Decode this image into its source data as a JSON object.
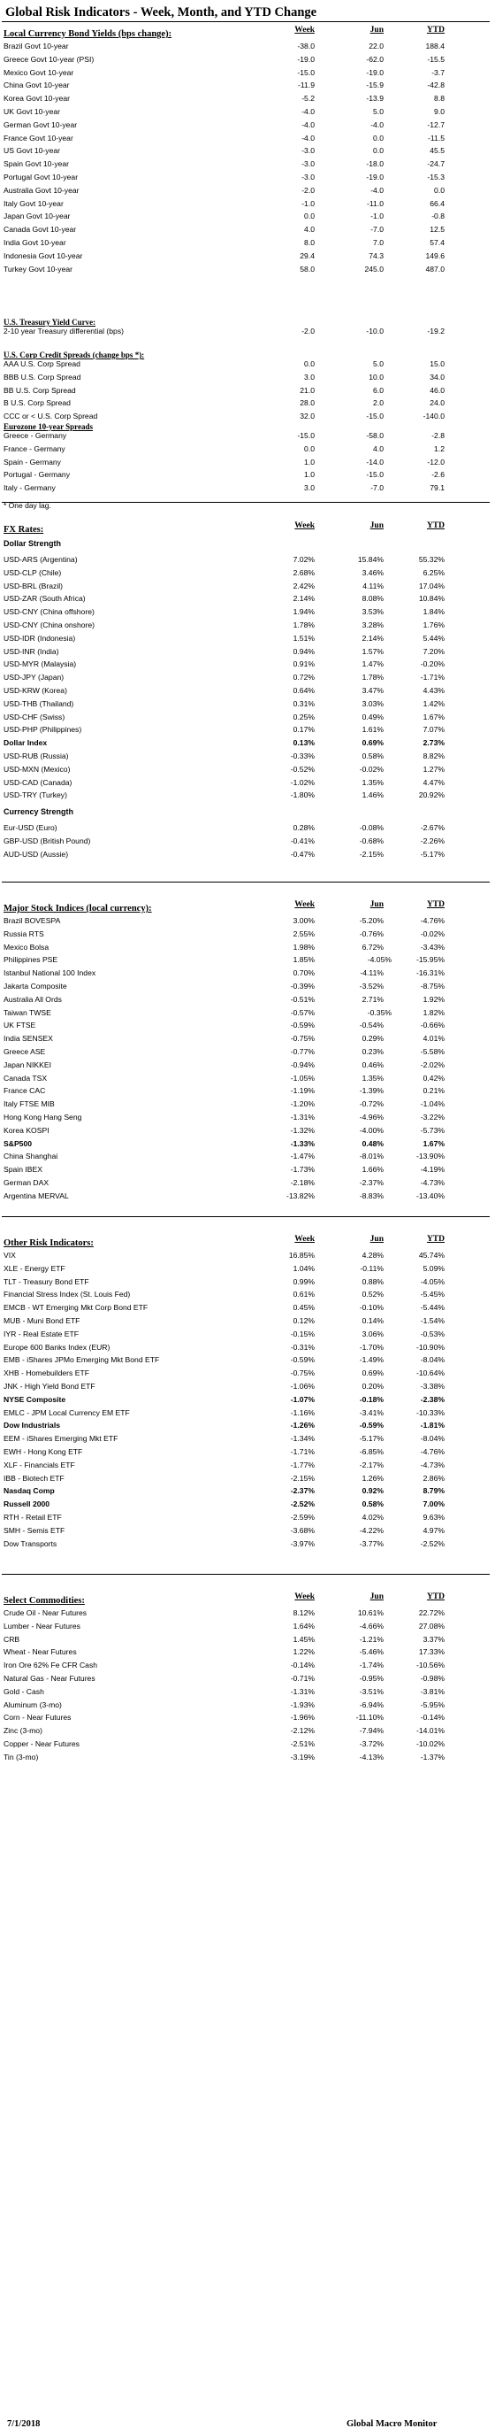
{
  "title": "Global Risk Indicators - Week, Month, and YTD Change",
  "columns": {
    "c1": "Week",
    "c2": "Jun",
    "c3": "YTD"
  },
  "footnote": "* One day lag.",
  "footer": {
    "date": "7/1/2018",
    "brand": "Global Macro Monitor"
  },
  "sections": [
    {
      "heading": "Local Currency Bond Yields (bps change):",
      "show_cols": true,
      "groups": [
        {
          "rows": [
            [
              "Brazil Govt 10-year",
              "-38.0",
              "22.0",
              "188.4"
            ],
            [
              "Greece Govt 10-year (PSI)",
              "-19.0",
              "-62.0",
              "-15.5"
            ],
            [
              "Mexico Govt 10-year",
              "-15.0",
              "-19.0",
              "-3.7"
            ],
            [
              "China Govt 10-year",
              "-11.9",
              "-15.9",
              "-42.8"
            ],
            [
              "Korea Govt 10-year",
              "-5.2",
              "-13.9",
              "8.8"
            ],
            [
              "UK Govt 10-year",
              "-4.0",
              "5.0",
              "9.0"
            ],
            [
              "German Govt 10-year",
              "-4.0",
              "-4.0",
              "-12.7"
            ],
            [
              "France Govt 10-year",
              "-4.0",
              "0.0",
              "-11.5"
            ],
            [
              "US Govt 10-year",
              "-3.0",
              "0.0",
              "45.5"
            ],
            [
              "Spain Govt 10-year",
              "-3.0",
              "-18.0",
              "-24.7"
            ],
            [
              "Portugal Govt 10-year",
              "-3.0",
              "-19.0",
              "-15.3"
            ],
            [
              "Australia Govt 10-year",
              "-2.0",
              "-4.0",
              "0.0"
            ],
            [
              "Italy Govt 10-year",
              "-1.0",
              "-11.0",
              "66.4"
            ],
            [
              "Japan Govt 10-year",
              "0.0",
              "-1.0",
              "-0.8"
            ],
            [
              "Canada Govt 10-year",
              "4.0",
              "-7.0",
              "12.5"
            ],
            [
              "India Govt 10-year",
              "8.0",
              "7.0",
              "57.4"
            ],
            [
              "Indonesia Govt 10-year",
              "29.4",
              "74.3",
              "149.6"
            ],
            [
              "Turkey Govt 10-year",
              "58.0",
              "245.0",
              "487.0"
            ]
          ]
        }
      ]
    },
    {
      "heading": "U.S. Treasury Yield Curve:",
      "small": true,
      "groups": [
        {
          "rows": [
            [
              "2-10 year Treasury differential (bps)",
              "-2.0",
              "-10.0",
              "-19.2"
            ]
          ]
        }
      ]
    },
    {
      "heading": "U.S. Corp Credit Spreads (change bps *):",
      "small": true,
      "groups": [
        {
          "rows": [
            [
              "AAA U.S. Corp Spread",
              "0.0",
              "5.0",
              "15.0"
            ],
            [
              "BBB U.S. Corp Spread",
              "3.0",
              "10.0",
              "34.0"
            ],
            [
              "BB U.S. Corp Spread",
              "21.0",
              "6.0",
              "46.0"
            ],
            [
              "B U.S. Corp Spread",
              "28.0",
              "2.0",
              "24.0"
            ],
            [
              "CCC or < U.S. Corp Spread",
              "32.0",
              "-15.0",
              "-140.0"
            ]
          ]
        }
      ]
    },
    {
      "heading": "Eurozone 10-year Spreads",
      "small": true,
      "groups": [
        {
          "rows": [
            [
              "Greece - Germany",
              "-15.0",
              "-58.0",
              "-2.8"
            ],
            [
              "France - Germany",
              "0.0",
              "4.0",
              "1.2"
            ],
            [
              "Spain - Germany",
              "1.0",
              "-14.0",
              "-12.0"
            ],
            [
              "Portugal - Germany",
              "1.0",
              "-15.0",
              "-2.6"
            ],
            [
              "Italy - Germany",
              "3.0",
              "-7.0",
              "79.1"
            ]
          ]
        }
      ]
    },
    {
      "heading": "FX Rates:",
      "show_cols": true,
      "groups": [
        {
          "sub": "Dollar Strength",
          "rows": [
            [
              "USD-ARS (Argentina)",
              "7.02%",
              "15.84%",
              "55.32%"
            ],
            [
              "USD-CLP (Chile)",
              "2.68%",
              "3.46%",
              "6.25%"
            ],
            [
              "USD-BRL (Brazil)",
              "2.42%",
              "4.11%",
              "17.04%"
            ],
            [
              "USD-ZAR (South Africa)",
              "2.14%",
              "8.08%",
              "10.84%"
            ],
            [
              "USD-CNY (China offshore)",
              "1.94%",
              "3.53%",
              "1.84%"
            ],
            [
              "USD-CNY (China onshore)",
              "1.78%",
              "3.28%",
              "1.76%"
            ],
            [
              "USD-IDR (Indonesia)",
              "1.51%",
              "2.14%",
              "5.44%"
            ],
            [
              "USD-INR (India)",
              "0.94%",
              "1.57%",
              "7.20%"
            ],
            [
              "USD-MYR (Malaysia)",
              "0.91%",
              "1.47%",
              "-0.20%"
            ],
            [
              "USD-JPY (Japan)",
              "0.72%",
              "1.78%",
              "-1.71%"
            ],
            [
              "USD-KRW (Korea)",
              "0.64%",
              "3.47%",
              "4.43%"
            ],
            [
              "USD-THB  (Thailand)",
              "0.31%",
              "3.03%",
              "1.42%"
            ],
            [
              "USD-CHF (Swiss)",
              "0.25%",
              "0.49%",
              "1.67%"
            ],
            [
              "USD-PHP (Philippines)",
              "0.17%",
              "1.61%",
              "7.07%"
            ],
            [
              "Dollar Index",
              "0.13%",
              "0.69%",
              "2.73%",
              "b"
            ],
            [
              "USD-RUB (Russia)",
              "-0.33%",
              "0.58%",
              "8.82%"
            ],
            [
              "USD-MXN  (Mexico)",
              "-0.52%",
              "-0.02%",
              "1.27%"
            ],
            [
              "USD-CAD (Canada)",
              "-1.02%",
              "1.35%",
              "4.47%"
            ],
            [
              "USD-TRY (Turkey)",
              "-1.80%",
              "1.46%",
              "20.92%"
            ]
          ]
        },
        {
          "sub": "Currency Strength",
          "rows": [
            [
              "Eur-USD (Euro)",
              "0.28%",
              "-0.08%",
              "-2.67%"
            ],
            [
              "GBP-USD (British Pound)",
              "-0.41%",
              "-0.68%",
              "-2.26%"
            ],
            [
              "AUD-USD (Aussie)",
              "-0.47%",
              "-2.15%",
              "-5.17%"
            ]
          ]
        }
      ]
    },
    {
      "heading": "Major Stock Indices (local currency):",
      "show_cols": true,
      "groups": [
        {
          "rows": [
            [
              "Brazil BOVESPA",
              "3.00%",
              "-5.20%",
              "-4.76%"
            ],
            [
              "Russia RTS",
              "2.55%",
              "-0.76%",
              "-0.02%"
            ],
            [
              "Mexico Bolsa",
              "1.98%",
              "6.72%",
              "-3.43%"
            ],
            [
              "Philippines PSE",
              "1.85%",
              "-4.05%",
              "-15.95%",
              "",
              "v2shift"
            ],
            [
              "Istanbul National 100 Index",
              "0.70%",
              "-4.11%",
              "-16.31%"
            ],
            [
              "Jakarta Composite",
              "-0.39%",
              "-3.52%",
              "-8.75%"
            ],
            [
              "Australia All Ords",
              "-0.51%",
              "2.71%",
              "1.92%"
            ],
            [
              "Taiwan  TWSE",
              "-0.57%",
              "-0.35%",
              "1.82%",
              "",
              "v2shift"
            ],
            [
              "UK FTSE",
              "-0.59%",
              "-0.54%",
              "-0.66%"
            ],
            [
              "India SENSEX",
              "-0.75%",
              "0.29%",
              "4.01%"
            ],
            [
              "Greece ASE",
              "-0.77%",
              "0.23%",
              "-5.58%"
            ],
            [
              "Japan NIKKEI",
              "-0.94%",
              "0.46%",
              "-2.02%"
            ],
            [
              "Canada TSX",
              "-1.05%",
              "1.35%",
              "0.42%"
            ],
            [
              "France CAC",
              "-1.19%",
              "-1.39%",
              "0.21%"
            ],
            [
              "Italy FTSE MIB",
              "-1.20%",
              "-0.72%",
              "-1.04%"
            ],
            [
              "Hong Kong Hang Seng",
              "-1.31%",
              "-4.96%",
              "-3.22%"
            ],
            [
              "Korea KOSPI",
              "-1.32%",
              "-4.00%",
              "-5.73%"
            ],
            [
              "S&P500",
              "-1.33%",
              "0.48%",
              "1.67%",
              "b"
            ],
            [
              "China Shanghai",
              "-1.47%",
              "-8.01%",
              "-13.90%"
            ],
            [
              "Spain IBEX",
              "-1.73%",
              "1.66%",
              "-4.19%"
            ],
            [
              "German DAX",
              "-2.18%",
              "-2.37%",
              "-4.73%"
            ],
            [
              "Argentina MERVAL",
              "-13.82%",
              "-8.83%",
              "-13.40%"
            ]
          ]
        }
      ]
    },
    {
      "heading": "Other Risk Indicators:",
      "show_cols": true,
      "groups": [
        {
          "rows": [
            [
              "VIX",
              "16.85%",
              "4.28%",
              "45.74%"
            ],
            [
              "XLE - Energy ETF",
              "1.04%",
              "-0.11%",
              "5.09%"
            ],
            [
              "TLT - Treasury Bond ETF",
              "0.99%",
              "0.88%",
              "-4.05%"
            ],
            [
              "Financial Stress Index (St. Louis Fed)",
              "0.61%",
              "0.52%",
              "-5.45%"
            ],
            [
              "EMCB - WT Emerging Mkt Corp Bond ETF",
              "0.45%",
              "-0.10%",
              "-5.44%"
            ],
            [
              "MUB - Muni Bond ETF",
              "0.12%",
              "0.14%",
              "-1.54%"
            ],
            [
              "IYR - Real Estate ETF",
              "-0.15%",
              "3.06%",
              "-0.53%"
            ],
            [
              "Europe 600 Banks Index (EUR)",
              "-0.31%",
              "-1.70%",
              "-10.90%"
            ],
            [
              "EMB - iShares JPMo Emerging Mkt Bond ETF",
              "-0.59%",
              "-1.49%",
              "-8.04%"
            ],
            [
              "XHB - Homebuilders ETF",
              "-0.75%",
              "0.69%",
              "-10.64%"
            ],
            [
              "JNK - High Yield Bond ETF",
              "-1.06%",
              "0.20%",
              "-3.38%"
            ],
            [
              "NYSE Composite",
              "-1.07%",
              "-0.18%",
              "-2.38%",
              "b"
            ],
            [
              "EMLC - JPM Local Currency EM ETF",
              "-1.16%",
              "-3.41%",
              "-10.33%"
            ],
            [
              "Dow Industrials",
              "-1.26%",
              "-0.59%",
              "-1.81%",
              "b"
            ],
            [
              "EEM - iShares Emerging Mkt ETF",
              "-1.34%",
              "-5.17%",
              "-8.04%"
            ],
            [
              "EWH - Hong Kong ETF",
              "-1.71%",
              "-6.85%",
              "-4.76%"
            ],
            [
              "XLF - Financials ETF",
              "-1.77%",
              "-2.17%",
              "-4.73%"
            ],
            [
              "IBB - Biotech ETF",
              "-2.15%",
              "1.26%",
              "2.86%"
            ],
            [
              "Nasdaq Comp",
              "-2.37%",
              "0.92%",
              "8.79%",
              "b"
            ],
            [
              "Russell 2000",
              "-2.52%",
              "0.58%",
              "7.00%",
              "b"
            ],
            [
              "RTH - Retail ETF",
              "-2.59%",
              "4.02%",
              "9.63%"
            ],
            [
              "SMH - Semis ETF",
              "-3.68%",
              "-4.22%",
              "4.97%"
            ],
            [
              "Dow Transports",
              "-3.97%",
              "-3.77%",
              "-2.52%"
            ]
          ]
        }
      ]
    },
    {
      "heading": "Select Commodities:",
      "show_cols": true,
      "groups": [
        {
          "rows": [
            [
              "Crude Oil - Near Futures",
              "8.12%",
              "10.61%",
              "22.72%"
            ],
            [
              "Lumber - Near Futures",
              "1.64%",
              "-4.66%",
              "27.08%"
            ],
            [
              "CRB",
              "1.45%",
              "-1.21%",
              "3.37%"
            ],
            [
              "Wheat - Near Futures",
              "1.22%",
              "-5.46%",
              "17.33%"
            ],
            [
              "Iron Ore 62% Fe CFR Cash",
              "-0.14%",
              "-1.74%",
              "-10.56%"
            ],
            [
              "Natural Gas - Near Futures",
              "-0.71%",
              "-0.95%",
              "-0.98%"
            ],
            [
              "Gold - Cash",
              "-1.31%",
              "-3.51%",
              "-3.81%"
            ],
            [
              "Aluminum (3-mo)",
              "-1.93%",
              "-6.94%",
              "-5.95%"
            ],
            [
              "Corn - Near Futures",
              "-1.96%",
              "-11.10%",
              "-0.14%"
            ],
            [
              "Zinc (3-mo)",
              "-2.12%",
              "-7.94%",
              "-14.01%"
            ],
            [
              "Copper - Near Futures",
              "-2.51%",
              "-3.72%",
              "-10.02%"
            ],
            [
              "Tin (3-mo)",
              "-3.19%",
              "-4.13%",
              "-1.37%"
            ]
          ]
        }
      ]
    }
  ]
}
